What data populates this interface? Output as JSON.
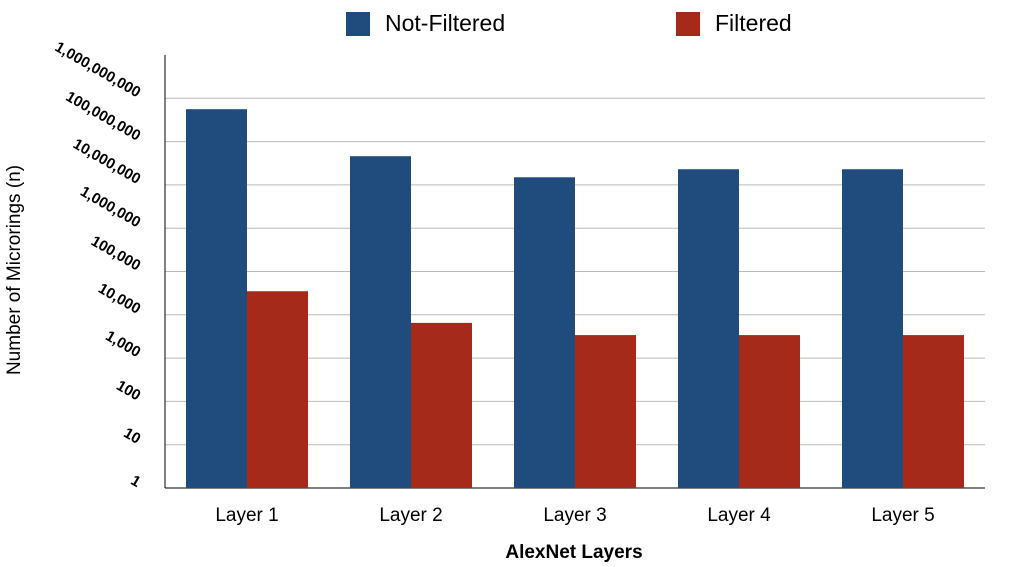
{
  "chart_data": {
    "type": "bar",
    "log_scale": true,
    "grid": true,
    "legend": "top",
    "x_label": "AlexNet Layers",
    "y_label": "Number of Microrings (n)",
    "categories": [
      "Layer 1",
      "Layer 2",
      "Layer 3",
      "Layer 4",
      "Layer 5"
    ],
    "series": [
      {
        "name": "Not-Filtered",
        "color": "#1f4b7d",
        "values": [
          560000000,
          46000000,
          15000000,
          23000000,
          23000000
        ]
      },
      {
        "name": "Filtered",
        "color": "#a52a1a",
        "values": [
          35000,
          6500,
          3400,
          3400,
          3400
        ]
      }
    ],
    "ylim": [
      1,
      10000000000
    ],
    "yticks": [
      1,
      10,
      100,
      {
        "value": 1000,
        "label": "1,000"
      },
      {
        "value": 10000,
        "label": "10,000"
      },
      {
        "value": 100000,
        "label": "100,000"
      },
      {
        "value": 1000000,
        "label": "1,000,000"
      },
      {
        "value": 10000000,
        "label": "10,000,000"
      },
      {
        "value": 100000000,
        "label": "100,000,000"
      },
      {
        "value": 1000000000,
        "label": "1,000,000,000"
      }
    ]
  }
}
